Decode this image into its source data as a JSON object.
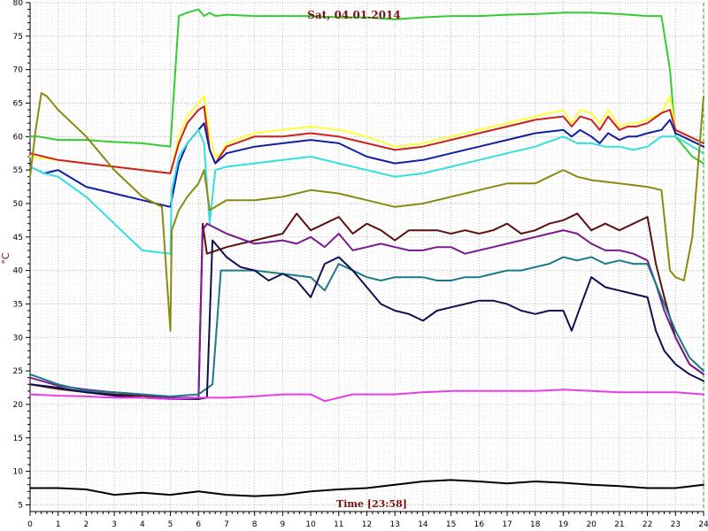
{
  "chart_data": {
    "type": "line",
    "title": "Sat, 04.01.2014",
    "xlabel": "Time [23:58]",
    "ylabel": "°C",
    "xlim": [
      0,
      24
    ],
    "ylim": [
      4,
      80
    ],
    "x_ticks": [
      0,
      1,
      2,
      3,
      4,
      5,
      6,
      7,
      8,
      9,
      10,
      11,
      12,
      13,
      14,
      15,
      16,
      17,
      18,
      19,
      20,
      21,
      22,
      23,
      24
    ],
    "y_ticks": [
      5,
      10,
      15,
      20,
      25,
      30,
      35,
      40,
      45,
      50,
      55,
      60,
      65,
      70,
      75,
      80
    ],
    "grid": true,
    "marker_x": 24,
    "series": [
      {
        "color": "#33cc33",
        "x": [
          0,
          0.3,
          1,
          2,
          3,
          4,
          5,
          5.1,
          5.3,
          5.6,
          6,
          6.2,
          6.4,
          6.6,
          7,
          8,
          9,
          10,
          11,
          12,
          13,
          14,
          15,
          16,
          17,
          18,
          19,
          20,
          21,
          22,
          22.5,
          22.8,
          23,
          23.4,
          23.6,
          24
        ],
        "y": [
          60,
          60,
          59.5,
          59.5,
          59.2,
          59,
          58.5,
          65,
          78,
          78.5,
          79,
          78,
          78.5,
          78,
          78.2,
          78,
          78,
          78,
          77.8,
          77.8,
          77.5,
          77.8,
          78,
          78,
          78.2,
          78.3,
          78.5,
          78.5,
          78.3,
          78,
          78,
          70,
          60,
          58,
          57,
          56
        ]
      },
      {
        "color": "#ffff33",
        "x": [
          0,
          1,
          2,
          3,
          4,
          5,
          5.3,
          5.6,
          6,
          6.2,
          6.4,
          6.6,
          6.8,
          7,
          8,
          9,
          10,
          11,
          12,
          13,
          14,
          15,
          16,
          17,
          18,
          19,
          19.3,
          19.6,
          20,
          20.3,
          20.6,
          21,
          21.3,
          21.6,
          22,
          22.5,
          22.8,
          23,
          24
        ],
        "y": [
          57,
          56.5,
          56,
          55.5,
          55,
          54.5,
          60,
          63,
          65,
          66,
          60,
          57,
          57.5,
          59,
          60.5,
          61,
          61.5,
          61,
          60,
          58.5,
          59,
          60,
          61,
          62,
          63,
          64,
          62,
          64,
          63.5,
          62,
          64,
          61.5,
          62,
          62,
          62.5,
          63.5,
          66,
          61,
          59
        ]
      },
      {
        "color": "#cc2020",
        "x": [
          0,
          1,
          2,
          3,
          4,
          5,
          5.3,
          5.6,
          6,
          6.2,
          6.4,
          6.6,
          7,
          8,
          9,
          10,
          11,
          12,
          13,
          14,
          15,
          16,
          17,
          18,
          19,
          19.3,
          19.6,
          20,
          20.3,
          20.6,
          21,
          21.3,
          21.6,
          22,
          22.5,
          22.8,
          23,
          24
        ],
        "y": [
          57.5,
          56.5,
          56,
          55.5,
          55,
          54.5,
          59,
          62,
          64,
          64.5,
          58,
          56,
          58.5,
          60,
          60,
          60.5,
          60,
          59,
          58,
          58.5,
          59.5,
          60.5,
          61.5,
          62.5,
          63,
          61.5,
          63,
          62.5,
          61,
          63,
          61,
          61.5,
          61.5,
          62,
          63.5,
          64,
          61,
          59
        ]
      },
      {
        "color": "#1020a0",
        "x": [
          0,
          0.5,
          1,
          2,
          3,
          4,
          5,
          5.3,
          5.6,
          6,
          6.2,
          6.4,
          6.6,
          7,
          8,
          9,
          10,
          11,
          12,
          13,
          14,
          15,
          16,
          17,
          18,
          19,
          19.3,
          19.6,
          20,
          20.3,
          20.6,
          21,
          21.3,
          21.6,
          22,
          22.5,
          22.8,
          23,
          24
        ],
        "y": [
          55.5,
          54.5,
          55,
          52.5,
          51.5,
          50.5,
          49.5,
          56,
          59,
          61,
          62,
          58,
          56,
          57.5,
          58.5,
          59,
          59.5,
          59,
          57,
          56,
          56.5,
          57.5,
          58.5,
          59.5,
          60.5,
          61,
          60,
          61,
          60,
          59,
          60.5,
          59.5,
          60,
          60,
          60.5,
          61,
          62.5,
          60.5,
          58.5
        ]
      },
      {
        "color": "#33e0e0",
        "x": [
          0,
          0.5,
          1,
          2,
          3,
          4,
          5,
          5.05,
          5.3,
          5.6,
          6,
          6.2,
          6.4,
          6.6,
          7,
          8,
          9,
          10,
          11,
          12,
          13,
          14,
          15,
          16,
          17,
          18,
          19,
          19.5,
          20,
          20.5,
          21,
          21.5,
          22,
          22.5,
          23,
          24
        ],
        "y": [
          55.5,
          54.5,
          54,
          51,
          47,
          43,
          42.5,
          52,
          57,
          59,
          61,
          59,
          47,
          55,
          55.5,
          56,
          56.5,
          57,
          56,
          55,
          54,
          54.5,
          55.5,
          56.5,
          57.5,
          58.5,
          60,
          59,
          59,
          58.5,
          58.5,
          58,
          58.5,
          60,
          60,
          57.5
        ]
      },
      {
        "color": "#8a8a10",
        "x": [
          0,
          0.2,
          0.4,
          0.6,
          1,
          2,
          3,
          4,
          4.7,
          5,
          5.05,
          5.3,
          5.6,
          6,
          6.2,
          6.4,
          6.6,
          7,
          8,
          9,
          10,
          11,
          12,
          13,
          14,
          15,
          16,
          17,
          18,
          18.5,
          19,
          19.5,
          20,
          21,
          22,
          22.5,
          22.8,
          23,
          23.3,
          23.6,
          24
        ],
        "y": [
          54,
          61,
          66.5,
          66,
          64,
          60,
          55,
          51,
          49.5,
          31,
          46,
          49,
          51,
          53,
          55,
          49,
          49.5,
          50.5,
          50.5,
          51,
          52,
          51.5,
          50.5,
          49.5,
          50,
          51,
          52,
          53,
          53,
          54,
          55,
          54,
          53.5,
          53,
          52.5,
          52,
          40,
          39,
          38.5,
          45,
          66
        ]
      },
      {
        "color": "#5e1010",
        "x": [
          0,
          1,
          2,
          3,
          4,
          5,
          6,
          6.15,
          6.3,
          7,
          8,
          9,
          9.5,
          10,
          10.5,
          11,
          11.5,
          12,
          12.5,
          13,
          13.5,
          14,
          14.5,
          15,
          15.5,
          16,
          16.5,
          17,
          17.5,
          18,
          18.5,
          19,
          19.5,
          20,
          20.5,
          21,
          21.5,
          22,
          22.3,
          22.6,
          23,
          23.5,
          24
        ],
        "y": [
          23,
          22.3,
          21.8,
          21.5,
          21.3,
          21,
          20.8,
          47,
          42.5,
          43.5,
          44.5,
          45.5,
          48.5,
          46,
          47,
          48,
          45.5,
          47,
          46,
          44.5,
          46,
          46,
          46,
          45.5,
          46,
          45.5,
          46,
          47,
          45.5,
          46,
          47,
          47.5,
          48.5,
          46,
          47,
          46,
          47,
          48,
          41,
          36,
          30,
          26,
          24.5
        ]
      },
      {
        "color": "#7a1a90",
        "x": [
          0,
          1,
          2,
          3,
          4,
          5,
          6,
          6.15,
          6.3,
          7,
          8,
          9,
          9.5,
          10,
          10.5,
          11,
          11.5,
          12,
          12.5,
          13,
          13.5,
          14,
          14.5,
          15,
          15.5,
          16,
          16.5,
          17,
          17.5,
          18,
          18.5,
          19,
          19.5,
          20,
          20.5,
          21,
          21.5,
          22,
          22.3,
          22.6,
          23,
          23.5,
          24
        ],
        "y": [
          24,
          22.8,
          22.2,
          21.8,
          21.5,
          21,
          21,
          46,
          47,
          45.5,
          44,
          44.5,
          44,
          45,
          43.5,
          45.5,
          43,
          43.5,
          44,
          43.5,
          43,
          43,
          43.5,
          43.5,
          42.5,
          43,
          43.5,
          44,
          44.5,
          45,
          45.5,
          46,
          45.5,
          44,
          43,
          43,
          42.5,
          41.5,
          38,
          34,
          30,
          26,
          24.5
        ]
      },
      {
        "color": "#1a7a8a",
        "x": [
          0,
          1,
          2,
          3,
          4,
          5,
          6,
          6.5,
          6.8,
          7,
          8,
          9,
          10,
          10.5,
          11,
          11.5,
          12,
          12.5,
          13,
          13.5,
          14,
          14.5,
          15,
          15.5,
          16,
          16.5,
          17,
          17.5,
          18,
          18.5,
          19,
          19.5,
          20,
          20.5,
          21,
          21.5,
          22,
          22.3,
          22.6,
          23,
          23.5,
          24
        ],
        "y": [
          24.5,
          23,
          22,
          21.8,
          21.5,
          21.2,
          21.5,
          23,
          40,
          40,
          40,
          39.5,
          39,
          37,
          41,
          40,
          39,
          38.5,
          39,
          39,
          39,
          38.5,
          38.5,
          39,
          39,
          39.5,
          40,
          40,
          40.5,
          41,
          42,
          41.5,
          42,
          41,
          41.5,
          41,
          41,
          38,
          35,
          31,
          27,
          25
        ]
      },
      {
        "color": "#101050",
        "x": [
          0,
          1,
          2,
          3,
          4,
          5,
          6,
          6.3,
          6.5,
          6.8,
          7,
          7.5,
          8,
          8.5,
          9,
          9.5,
          10,
          10.5,
          11,
          11.5,
          12,
          12.5,
          13,
          13.5,
          14,
          14.5,
          15,
          15.5,
          16,
          16.5,
          17,
          17.5,
          18,
          18.5,
          19,
          19.3,
          19.6,
          20,
          20.5,
          21,
          21.5,
          22,
          22.3,
          22.6,
          23,
          23.5,
          24
        ],
        "y": [
          23,
          22.5,
          21.8,
          21.3,
          21,
          20.8,
          20.8,
          21,
          44.5,
          43,
          42,
          40.5,
          40,
          38.5,
          39.5,
          38.5,
          36,
          41,
          42,
          40,
          37.5,
          35,
          34,
          33.5,
          32.5,
          34,
          34.5,
          35,
          35.5,
          35.5,
          35,
          34,
          33.5,
          34,
          34,
          31,
          34.5,
          39,
          37.5,
          37,
          36.5,
          36,
          31,
          28,
          26,
          24.5,
          23.5
        ]
      },
      {
        "color": "#e83ce8",
        "x": [
          0,
          1,
          2,
          3,
          4,
          5,
          6,
          7,
          8,
          9,
          10,
          10.5,
          11,
          11.5,
          12,
          13,
          14,
          15,
          16,
          17,
          18,
          19,
          20,
          21,
          22,
          23,
          24
        ],
        "y": [
          21.5,
          21.3,
          21.2,
          21,
          21,
          20.8,
          21,
          21,
          21.2,
          21.5,
          21.5,
          20.5,
          21,
          21.5,
          21.5,
          21.5,
          21.8,
          22,
          22,
          22,
          22,
          22.2,
          22,
          21.8,
          21.8,
          21.8,
          21.5
        ]
      },
      {
        "color": "#000000",
        "x": [
          0,
          1,
          2,
          3,
          4,
          5,
          6,
          7,
          8,
          9,
          10,
          11,
          12,
          13,
          14,
          15,
          16,
          17,
          18,
          19,
          20,
          21,
          22,
          23,
          24
        ],
        "y": [
          7.5,
          7.5,
          7.3,
          6.5,
          6.8,
          6.5,
          7,
          6.5,
          6.3,
          6.5,
          7,
          7.3,
          7.5,
          8,
          8.5,
          8.7,
          8.5,
          8.2,
          8.5,
          8.3,
          8,
          7.8,
          7.5,
          7.5,
          8
        ]
      }
    ]
  }
}
